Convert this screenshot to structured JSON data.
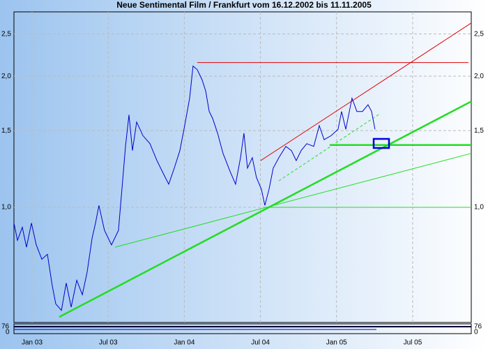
{
  "chart_data": {
    "type": "line",
    "title": "Neue Sentimental Film / Frankfurt vom 16.12.2002 bis 11.11.2005",
    "log_scale": true,
    "grid": true,
    "xlim": [
      -1.43,
      34.62
    ],
    "ylim": [
      0.544,
      2.81
    ],
    "xticks": [
      {
        "value": 0,
        "label": "Jan 03"
      },
      {
        "value": 6,
        "label": "Jul 03"
      },
      {
        "value": 12,
        "label": "Jan 04"
      },
      {
        "value": 18,
        "label": "Jul 04"
      },
      {
        "value": 24,
        "label": "Jan 05"
      },
      {
        "value": 30,
        "label": "Jul 05"
      }
    ],
    "yticks": [
      {
        "value": 1.0,
        "label": "1,0"
      },
      {
        "value": 1.5,
        "label": "1,5"
      },
      {
        "value": 2.0,
        "label": "2,0"
      },
      {
        "value": 2.5,
        "label": "2,5"
      }
    ],
    "x": [
      -1.43,
      -1.15,
      -0.77,
      -0.44,
      -0.05,
      0.33,
      0.77,
      1.21,
      1.59,
      1.87,
      2.31,
      2.69,
      3.08,
      3.52,
      3.96,
      4.34,
      4.73,
      5.0,
      5.27,
      5.71,
      6.26,
      6.81,
      7.14,
      7.36,
      7.64,
      7.91,
      8.24,
      8.74,
      9.29,
      9.84,
      10.38,
      10.77,
      11.21,
      11.65,
      12.03,
      12.42,
      12.69,
      13.02,
      13.41,
      13.68,
      13.96,
      14.23,
      14.62,
      15.05,
      15.6,
      16.04,
      16.43,
      16.7,
      16.98,
      17.36,
      17.69,
      18.08,
      18.35,
      18.68,
      19.01,
      19.45,
      20.0,
      20.44,
      20.82,
      21.21,
      21.65,
      22.2,
      22.64,
      23.02,
      23.57,
      24.12,
      24.4,
      24.73,
      25.22,
      25.6,
      26.04,
      26.48,
      26.76,
      27.03
    ],
    "series": [
      {
        "color": "#0000cc",
        "values": [
          0.92,
          0.84,
          0.9,
          0.81,
          0.92,
          0.82,
          0.76,
          0.78,
          0.66,
          0.6,
          0.58,
          0.67,
          0.59,
          0.68,
          0.63,
          0.71,
          0.85,
          0.92,
          1.01,
          0.885,
          0.82,
          0.885,
          1.15,
          1.38,
          1.63,
          1.35,
          1.57,
          1.46,
          1.4,
          1.28,
          1.19,
          1.13,
          1.23,
          1.35,
          1.54,
          1.78,
          2.11,
          2.07,
          1.96,
          1.85,
          1.66,
          1.6,
          1.48,
          1.33,
          1.21,
          1.13,
          1.3,
          1.48,
          1.23,
          1.3,
          1.17,
          1.1,
          1.01,
          1.1,
          1.23,
          1.3,
          1.38,
          1.35,
          1.28,
          1.35,
          1.4,
          1.38,
          1.54,
          1.43,
          1.46,
          1.51,
          1.66,
          1.51,
          1.78,
          1.66,
          1.66,
          1.72,
          1.66,
          1.51
        ]
      }
    ],
    "trend_lines": [
      {
        "color": "#e00000",
        "x": [
          13.02,
          34.4
        ],
        "values": [
          2.15,
          2.15
        ]
      },
      {
        "color": "#e00000",
        "x": [
          18.02,
          34.62
        ],
        "values": [
          1.28,
          2.65
        ]
      },
      {
        "color": "#22dd22",
        "thick": true,
        "x": [
          2.14,
          34.62
        ],
        "values": [
          0.56,
          1.75
        ]
      },
      {
        "color": "#22dd22",
        "x": [
          6.54,
          34.62
        ],
        "values": [
          0.81,
          1.33
        ]
      },
      {
        "color": "#22dd22",
        "x": [
          18.35,
          34.62
        ],
        "values": [
          1.0,
          1.0
        ]
      },
      {
        "color": "#22dd22",
        "thick": true,
        "x": [
          23.46,
          34.62
        ],
        "values": [
          1.39,
          1.39
        ]
      },
      {
        "color": "#22dd22",
        "dashed": true,
        "x": [
          19.45,
          27.42
        ],
        "values": [
          1.15,
          1.64
        ]
      }
    ],
    "volume_panel": {
      "yticks": [
        76,
        0
      ]
    }
  }
}
